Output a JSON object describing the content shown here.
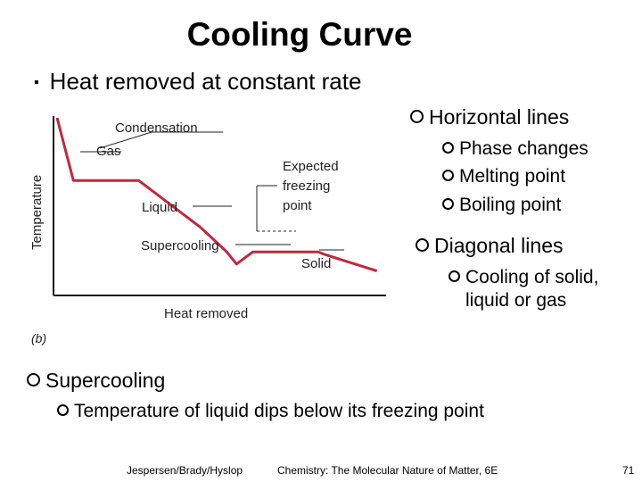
{
  "title": "Cooling Curve",
  "main_bullet": "Heat removed at constant rate",
  "right_list": [
    {
      "text": "Horizontal lines",
      "children": [
        "Phase changes",
        "Melting point",
        "Boiling point"
      ]
    },
    {
      "text": "Diagonal lines",
      "children": [
        "Cooling of solid,",
        "liquid or gas"
      ]
    }
  ],
  "bottom_list": {
    "text": "Supercooling",
    "child": "Temperature of liquid dips below its freezing point"
  },
  "figure": {
    "ylabel": "Temperature",
    "xlabel": "Heat removed",
    "caption": "(b)",
    "labels": {
      "condensation": "Condensation",
      "gas": "Gas",
      "expected_freezing": [
        "Expected",
        "freezing",
        "point"
      ],
      "liquid": "Liquid",
      "supercooling": "Supercooling",
      "solid": "Solid"
    },
    "colors": {
      "curve": "#c0283f",
      "axes": "#111111",
      "leader": "#222222"
    }
  },
  "chart_data": {
    "type": "line",
    "xlabel": "Heat removed",
    "ylabel": "Temperature",
    "series": [
      {
        "name": "",
        "x": [
          0,
          0.5,
          2.5,
          4.4,
          5.2,
          5.5,
          6.0,
          8.0,
          8.2,
          9.8
        ],
        "y": [
          10,
          6.4,
          6.4,
          3.7,
          2.3,
          1.6,
          2.3,
          2.3,
          2.15,
          1.2
        ]
      }
    ],
    "annotations": [
      "Condensation",
      "Gas",
      "Expected freezing point",
      "Liquid",
      "Supercooling",
      "Solid"
    ],
    "grid": false,
    "legend": "none"
  },
  "footer": {
    "authors": "Jespersen/Brady/Hyslop",
    "book": "Chemistry: The Molecular Nature of Matter, 6E",
    "page": "71"
  }
}
